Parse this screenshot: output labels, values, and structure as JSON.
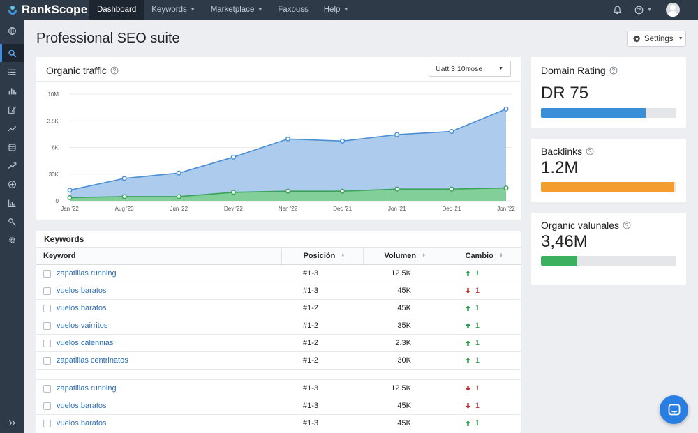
{
  "app": {
    "name": "RankScope"
  },
  "nav": {
    "items": [
      {
        "label": "Dashboard",
        "active": true,
        "dropdown": false
      },
      {
        "label": "Keywords",
        "active": false,
        "dropdown": true
      },
      {
        "label": "Marketplace",
        "active": false,
        "dropdown": true
      },
      {
        "label": "Faxouss",
        "active": false,
        "dropdown": false
      },
      {
        "label": "Help",
        "active": false,
        "dropdown": true
      }
    ]
  },
  "sidebar": {
    "icons": [
      "globe-icon",
      "search-icon",
      "list-icon",
      "bar-chart-icon",
      "edit-icon",
      "trend-icon",
      "database-icon",
      "trend-up-icon",
      "site-icon",
      "report-icon",
      "key-icon",
      "gear-icon"
    ],
    "active_index": 1
  },
  "page": {
    "title": "Professional SEO suite"
  },
  "settings": {
    "label": "Settings"
  },
  "traffic": {
    "title": "Organic traffic",
    "range_label": "Uatt 3.10ггose"
  },
  "chart_data": {
    "type": "area",
    "x": [
      "Jan '22",
      "Aug '23",
      "Jun '22",
      "Dev '22",
      "Nen '22",
      "Dec '21",
      "Jon '21",
      "Dec '21",
      "Jon '22"
    ],
    "y_ticks": [
      "0",
      "33K",
      "6K",
      "3.5K",
      "10M"
    ],
    "series": [
      {
        "color": "#4a8fd6",
        "fill": "#a9c8ec",
        "values": [
          0.1,
          0.21,
          0.26,
          0.41,
          0.58,
          0.56,
          0.62,
          0.65,
          0.86
        ]
      },
      {
        "color": "#3aa35a",
        "fill": "#7fcf96",
        "values": [
          0.03,
          0.04,
          0.04,
          0.08,
          0.09,
          0.09,
          0.11,
          0.11,
          0.12
        ]
      }
    ],
    "ylim": [
      0,
      1
    ],
    "grid": true,
    "title": "Organic traffic"
  },
  "metrics": [
    {
      "title": "Domain Rating",
      "value": "DR 75",
      "fill": 0.775,
      "color": "#3a8fd9"
    },
    {
      "title": "Backlinks",
      "value": "1.2M",
      "fill": 0.985,
      "color": "#f29d2e"
    },
    {
      "title": "Organic valunales",
      "value": "3,46M",
      "fill": 0.27,
      "color": "#3bb05e"
    }
  ],
  "keywords": {
    "title": "Keywords",
    "columns": [
      "Keyword",
      "Posición",
      "Volumen",
      "Cambio"
    ],
    "rows": [
      {
        "keyword": "zapatillas running",
        "pos": "#1-3",
        "vol": "12.5K",
        "dir": "up",
        "chg": "1"
      },
      {
        "keyword": "vuelos baratos",
        "pos": "#1-3",
        "vol": "45K",
        "dir": "down",
        "chg": "1"
      },
      {
        "keyword": "vuelos baratos",
        "pos": "#1-2",
        "vol": "45K",
        "dir": "up",
        "chg": "1"
      },
      {
        "keyword": "vuelos vairritos",
        "pos": "#1-2",
        "vol": "35K",
        "dir": "up",
        "chg": "1"
      },
      {
        "keyword": "vuelos calennias",
        "pos": "#1-2",
        "vol": "2.3K",
        "dir": "up",
        "chg": "1"
      },
      {
        "keyword": "zapatillas centrinatos",
        "pos": "#1-2",
        "vol": "30K",
        "dir": "up",
        "chg": "1"
      },
      {
        "spacer": true
      },
      {
        "keyword": "zapatillas running",
        "pos": "#1-3",
        "vol": "12.5K",
        "dir": "down",
        "chg": "1"
      },
      {
        "keyword": "vuelos baratos",
        "pos": "#1-3",
        "vol": "45K",
        "dir": "down",
        "chg": "1"
      },
      {
        "keyword": "vuelos baratos",
        "pos": "#1-3",
        "vol": "45K",
        "dir": "up",
        "chg": "1"
      }
    ]
  }
}
